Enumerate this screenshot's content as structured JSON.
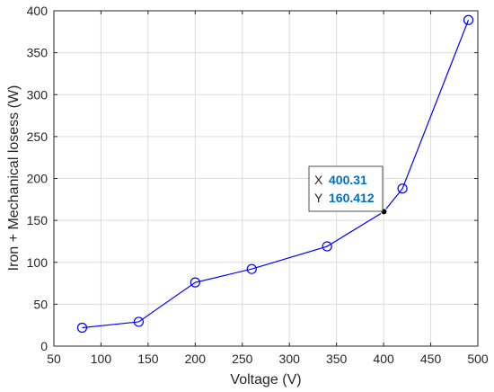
{
  "chart_data": {
    "type": "line",
    "xlabel": "Voltage (V)",
    "ylabel": "Iron + Mechanical losess (W)",
    "xlim": [
      50,
      500
    ],
    "ylim": [
      0,
      400
    ],
    "xticks": [
      50,
      100,
      150,
      200,
      250,
      300,
      350,
      400,
      450,
      500
    ],
    "yticks": [
      0,
      50,
      100,
      150,
      200,
      250,
      300,
      350,
      400
    ],
    "grid": true,
    "series": [
      {
        "color": "#0000ff",
        "marker": "circle",
        "x": [
          80,
          140,
          200,
          260,
          340,
          400.31,
          420,
          490
        ],
        "y": [
          22,
          29,
          76,
          92,
          119,
          160.412,
          188,
          389
        ]
      }
    ],
    "datatip": {
      "x_label": "X",
      "x_value": "400.31",
      "y_label": "Y",
      "y_value": "160.412",
      "value_color": "#0072bd",
      "x": 400.31,
      "y": 160.412
    }
  }
}
